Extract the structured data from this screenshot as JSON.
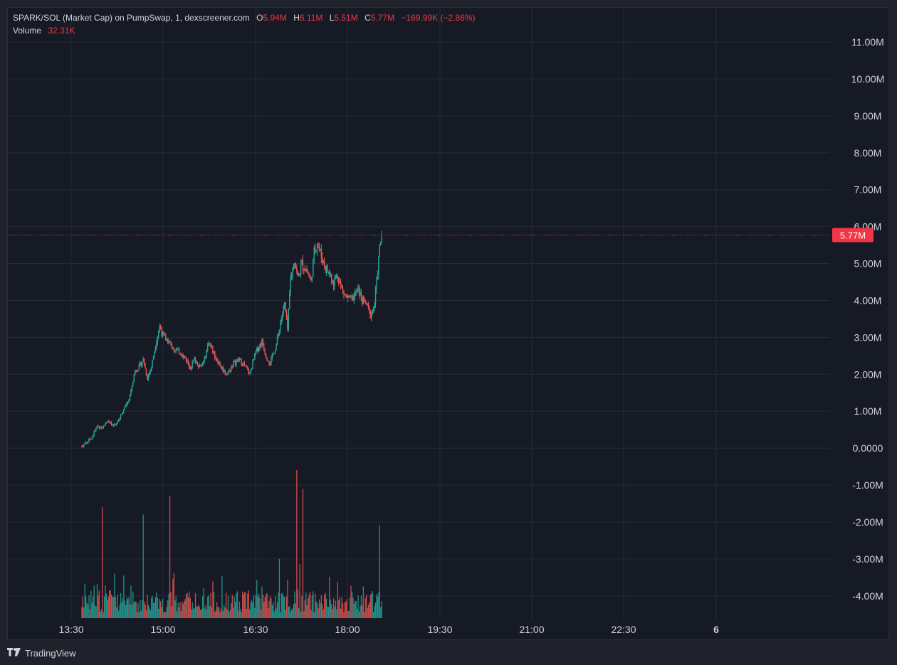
{
  "legend": {
    "pair": "SPARK/SOL (Market Cap) on PumpSwap, 1, dexscreener.com",
    "open_label": "O",
    "open_value": "5.94M",
    "high_label": "H",
    "high_value": "6.11M",
    "low_label": "L",
    "low_value": "5.51M",
    "close_label": "C",
    "close_value": "5.77M",
    "change": "−169.99K (−2.86%)",
    "volume_label": "Volume",
    "volume_value": "32.31K"
  },
  "branding": {
    "name": "TradingView"
  },
  "colors": {
    "background": "#161a25",
    "grid": "#252a36",
    "up": "#26a69a",
    "down": "#ef5350",
    "price_label": "#f23645",
    "axis_text": "#d1d4dc"
  },
  "chart_data": {
    "type": "candlestick",
    "symbol": "SPARK/SOL",
    "interval": "1",
    "y_axis": {
      "ticks": [
        "11.00M",
        "10.00M",
        "9.00M",
        "8.00M",
        "7.00M",
        "6.00M",
        "5.00M",
        "4.00M",
        "3.00M",
        "2.00M",
        "1.00M",
        "0.0000",
        "-1.00M",
        "-2.00M",
        "-3.00M",
        "-4.00M"
      ],
      "range_millions": [
        -4.75,
        11.3
      ]
    },
    "x_axis": {
      "ticks": [
        "13:30",
        "15:00",
        "16:30",
        "18:00",
        "19:30",
        "21:00",
        "22:30",
        "6"
      ],
      "bold_ticks": [
        "6"
      ],
      "range_minutes": [
        765,
        1531
      ]
    },
    "last_price": {
      "label": "5.77M",
      "value_millions": 5.77
    },
    "price_path_millions": [
      [
        820,
        0.05
      ],
      [
        830,
        0.3
      ],
      [
        835,
        0.6
      ],
      [
        840,
        0.55
      ],
      [
        845,
        0.75
      ],
      [
        850,
        0.6
      ],
      [
        855,
        0.7
      ],
      [
        860,
        1.0
      ],
      [
        866,
        1.3
      ],
      [
        872,
        2.1
      ],
      [
        876,
        2.2
      ],
      [
        880,
        2.4
      ],
      [
        884,
        1.9
      ],
      [
        888,
        2.2
      ],
      [
        892,
        2.8
      ],
      [
        896,
        3.3
      ],
      [
        900,
        3.0
      ],
      [
        904,
        2.9
      ],
      [
        910,
        2.7
      ],
      [
        916,
        2.6
      ],
      [
        922,
        2.4
      ],
      [
        926,
        2.2
      ],
      [
        930,
        2.4
      ],
      [
        936,
        2.2
      ],
      [
        940,
        2.4
      ],
      [
        944,
        2.9
      ],
      [
        950,
        2.5
      ],
      [
        956,
        2.2
      ],
      [
        962,
        2.0
      ],
      [
        968,
        2.3
      ],
      [
        974,
        2.4
      ],
      [
        980,
        2.2
      ],
      [
        984,
        2.0
      ],
      [
        990,
        2.6
      ],
      [
        996,
        2.9
      ],
      [
        1000,
        2.5
      ],
      [
        1004,
        2.3
      ],
      [
        1010,
        2.8
      ],
      [
        1014,
        3.4
      ],
      [
        1018,
        3.9
      ],
      [
        1021,
        3.2
      ],
      [
        1024,
        4.6
      ],
      [
        1028,
        5.1
      ],
      [
        1031,
        4.6
      ],
      [
        1035,
        5.0
      ],
      [
        1040,
        4.8
      ],
      [
        1044,
        4.5
      ],
      [
        1047,
        5.3
      ],
      [
        1050,
        5.6
      ],
      [
        1054,
        5.2
      ],
      [
        1058,
        4.9
      ],
      [
        1062,
        4.7
      ],
      [
        1066,
        4.5
      ],
      [
        1070,
        4.7
      ],
      [
        1074,
        4.3
      ],
      [
        1078,
        4.1
      ],
      [
        1082,
        4.0
      ],
      [
        1086,
        4.1
      ],
      [
        1090,
        4.3
      ],
      [
        1094,
        4.0
      ],
      [
        1098,
        3.9
      ],
      [
        1102,
        3.6
      ],
      [
        1106,
        3.9
      ],
      [
        1108,
        4.5
      ],
      [
        1111,
        5.4
      ],
      [
        1113,
        5.77
      ]
    ],
    "volume_peaks": [
      [
        840,
        3.0
      ],
      [
        852,
        1.2
      ],
      [
        880,
        2.8
      ],
      [
        906,
        3.3
      ],
      [
        1013,
        1.6
      ],
      [
        1030,
        4.0
      ],
      [
        1036,
        3.5
      ],
      [
        1111,
        2.5
      ]
    ]
  }
}
